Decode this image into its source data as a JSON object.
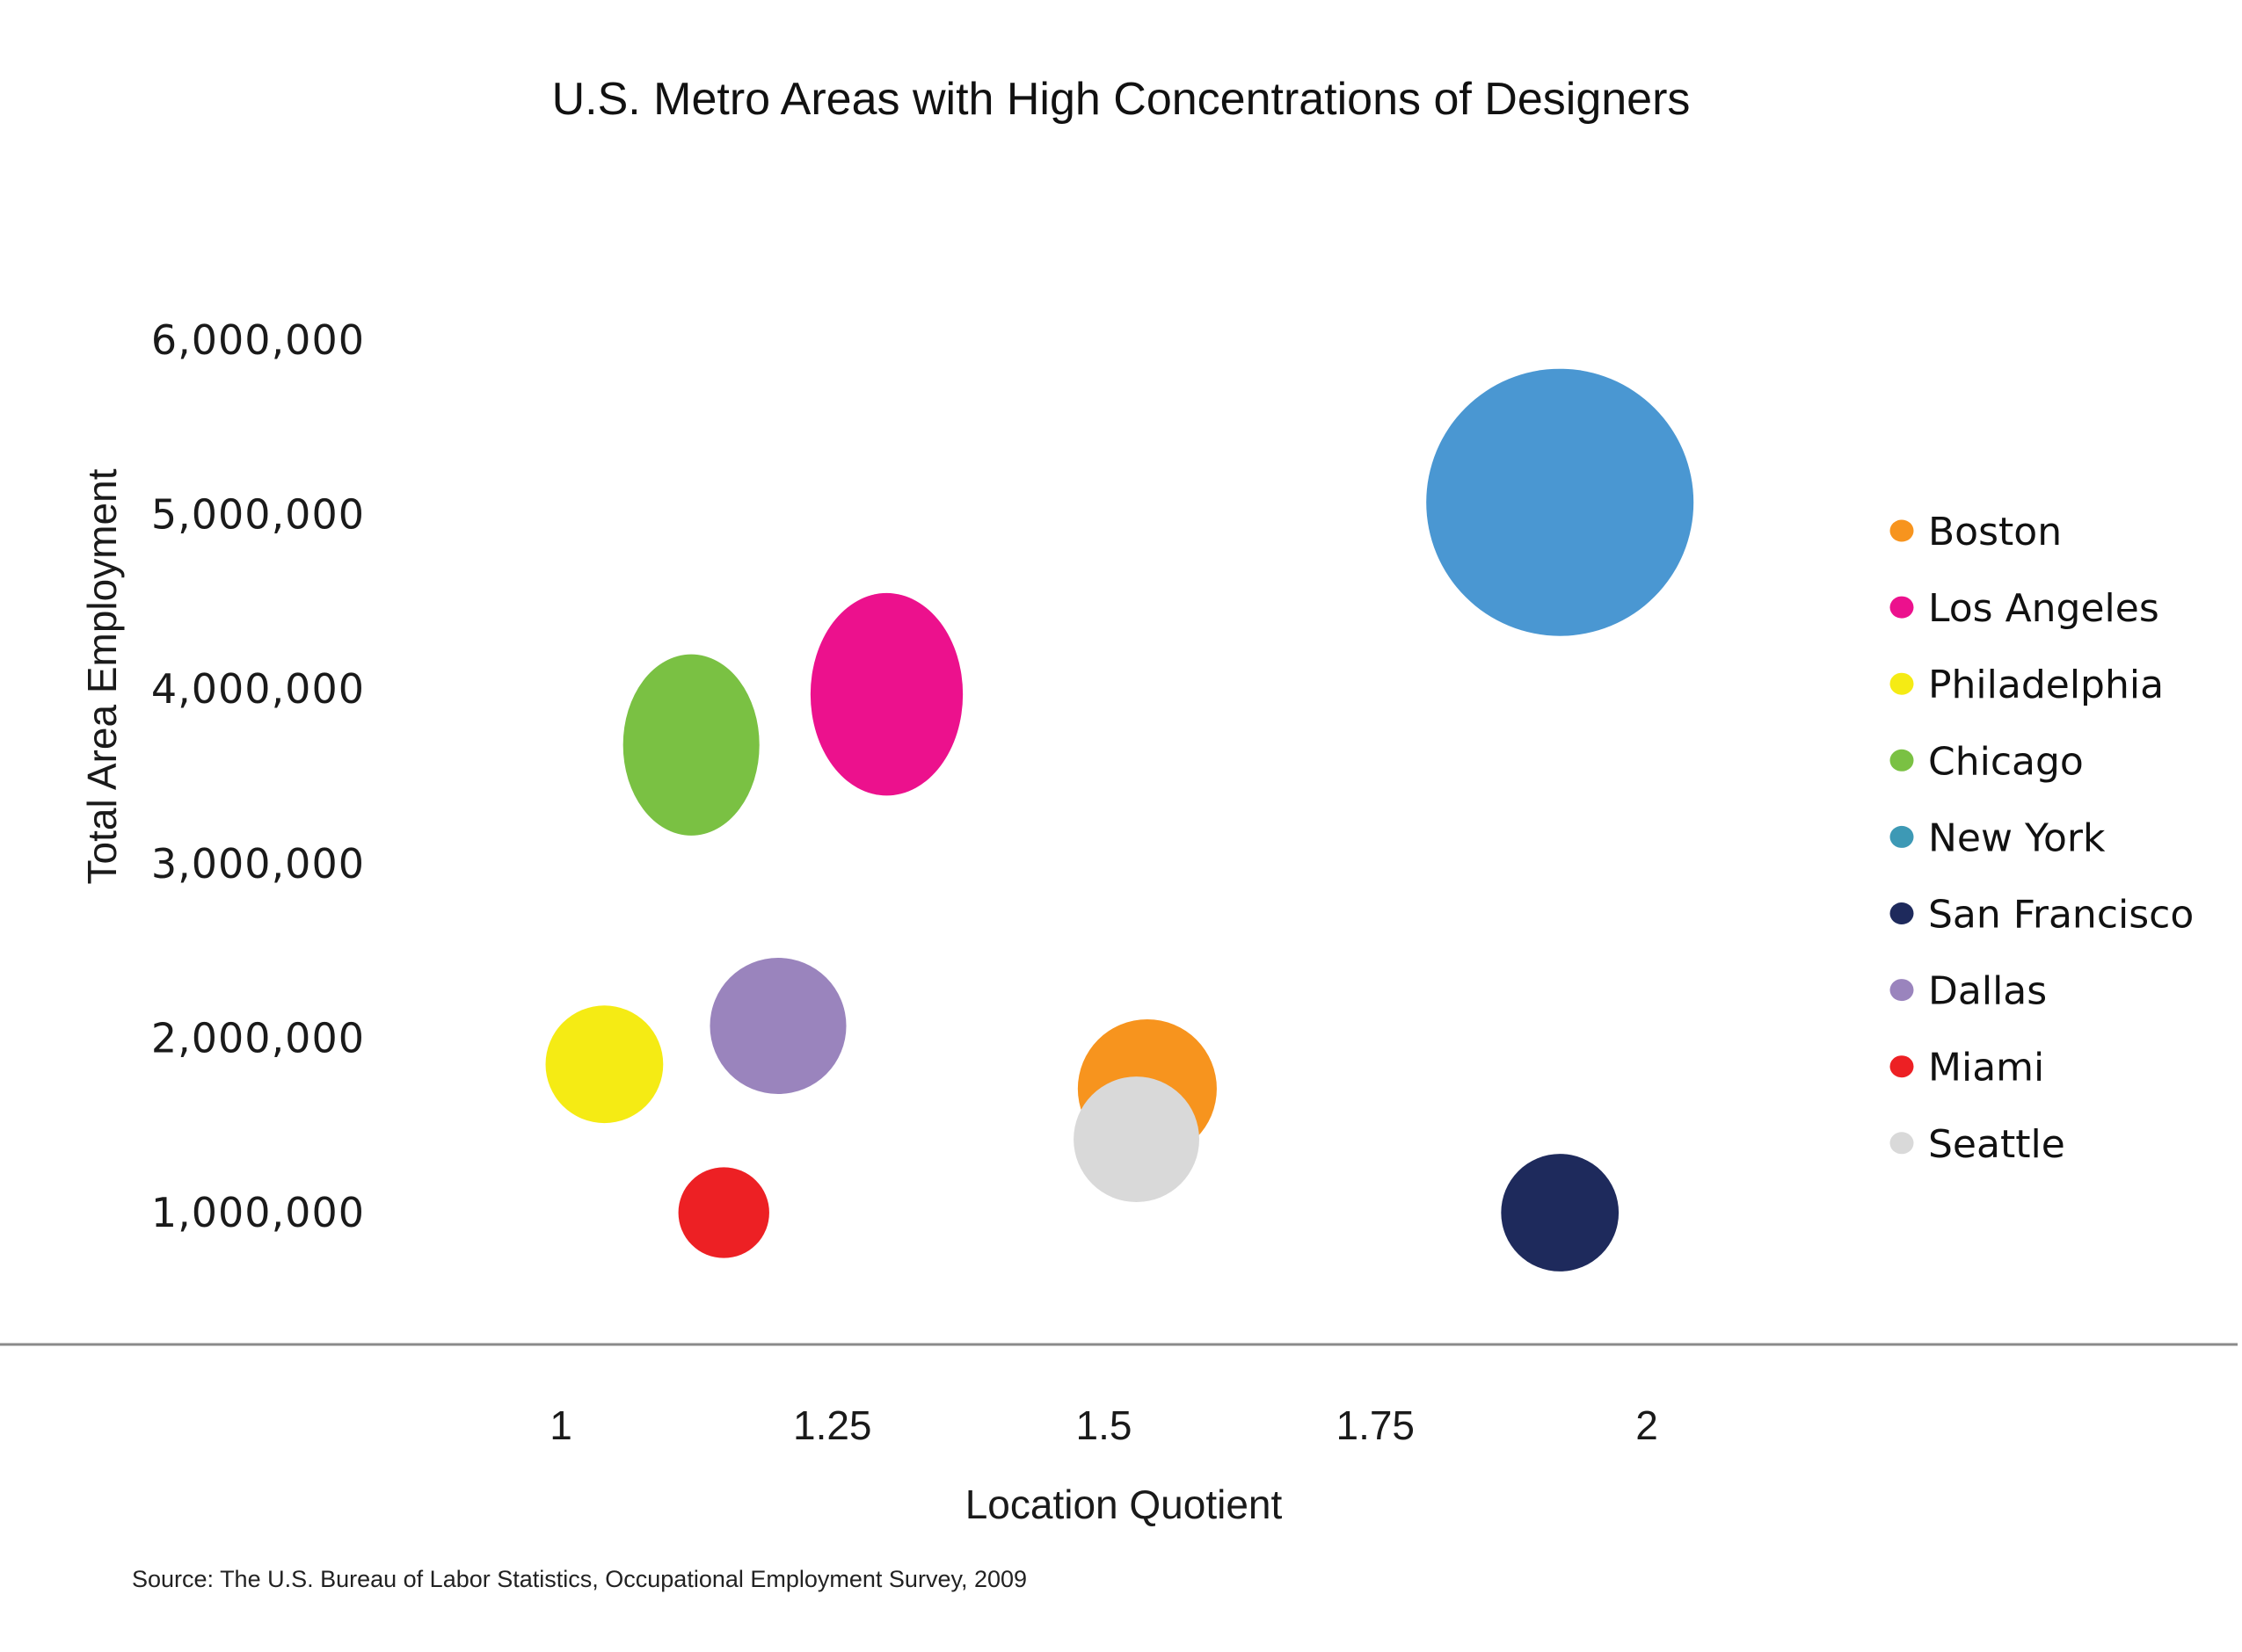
{
  "chart_data": {
    "type": "scatter",
    "subtype": "bubble",
    "title": "U.S. Metro Areas with High Concentrations of Designers",
    "xlabel": "Location Quotient",
    "ylabel": "Total Area Employment",
    "xlim": [
      1,
      2
    ],
    "ylim": [
      1000000,
      6000000
    ],
    "x_ticks": [
      {
        "value": 1,
        "label": "1"
      },
      {
        "value": 1.25,
        "label": "1.25"
      },
      {
        "value": 1.5,
        "label": "1.5"
      },
      {
        "value": 1.75,
        "label": "1.75"
      },
      {
        "value": 2,
        "label": "2"
      }
    ],
    "y_ticks": [
      {
        "value": 6000000,
        "label": "6,000,000"
      },
      {
        "value": 5000000,
        "label": "5,000,000"
      },
      {
        "value": 4000000,
        "label": "4,000,000"
      },
      {
        "value": 3000000,
        "label": "3,000,000"
      },
      {
        "value": 2000000,
        "label": "2,000,000"
      },
      {
        "value": 1000000,
        "label": "1,000,000"
      }
    ],
    "grid": false,
    "legend_position": "right",
    "bubble_size_note": "relative bubble size (arbitrary units, New York = 1.0)",
    "series": [
      {
        "name": "Boston",
        "color": "#F7941E",
        "x": 1.54,
        "y": 1710000,
        "size": 0.52
      },
      {
        "name": "Los Angeles",
        "color": "#EC118D",
        "x": 1.3,
        "y": 3970000,
        "size": 0.57
      },
      {
        "name": "Philadelphia",
        "color": "#F5EB14",
        "x": 1.04,
        "y": 1850000,
        "size": 0.44
      },
      {
        "name": "Chicago",
        "color": "#7AC143",
        "x": 1.12,
        "y": 3680000,
        "size": 0.51
      },
      {
        "name": "New York",
        "color": "#4A97D2",
        "legend_color": "#3D99B5",
        "x": 1.92,
        "y": 5070000,
        "size": 1.0
      },
      {
        "name": "San Francisco",
        "color": "#1E2A5C",
        "x": 1.92,
        "y": 1000000,
        "size": 0.44
      },
      {
        "name": "Dallas",
        "color": "#9A84BD",
        "x": 1.2,
        "y": 2070000,
        "size": 0.51
      },
      {
        "name": "Miami",
        "color": "#ED2024",
        "x": 1.15,
        "y": 1000000,
        "size": 0.34
      },
      {
        "name": "Seattle",
        "color": "#D9D9D9",
        "x": 1.53,
        "y": 1420000,
        "size": 0.47
      }
    ],
    "source": "Source: The U.S. Bureau of Labor Statistics, Occupational Employment Survey, 2009"
  },
  "colors": {
    "axis_line": "#8A8A8A",
    "text": "#111111"
  }
}
